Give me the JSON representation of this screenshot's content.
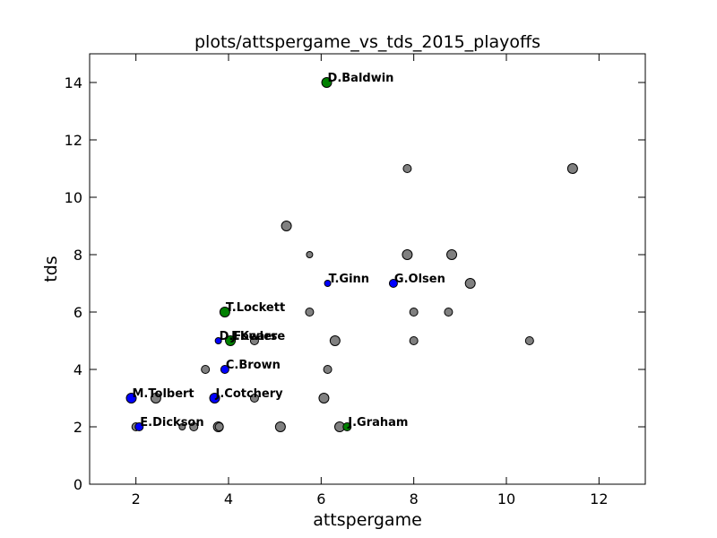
{
  "chart_data": {
    "type": "scatter",
    "title": "plots/attspergame_vs_tds_2015_playoffs",
    "xlabel": "attspergame",
    "ylabel": "tds",
    "xlim": [
      1,
      13
    ],
    "ylim": [
      0,
      15
    ],
    "xticks": [
      2,
      4,
      6,
      8,
      10,
      12
    ],
    "yticks": [
      0,
      2,
      4,
      6,
      8,
      10,
      12,
      14
    ],
    "grid": false,
    "colors": {
      "gray": "#808080",
      "blue": "#0000ff",
      "green": "#008000"
    },
    "points": [
      {
        "x": 11.43,
        "y": 11,
        "size": "medium",
        "color": "gray",
        "label": ""
      },
      {
        "x": 7.86,
        "y": 11,
        "size": "small",
        "color": "gray",
        "label": ""
      },
      {
        "x": 5.25,
        "y": 9,
        "size": "medium",
        "color": "gray",
        "label": ""
      },
      {
        "x": 5.75,
        "y": 8,
        "size": "tiny",
        "color": "gray",
        "label": ""
      },
      {
        "x": 7.86,
        "y": 8,
        "size": "medium",
        "color": "gray",
        "label": ""
      },
      {
        "x": 8.82,
        "y": 8,
        "size": "medium",
        "color": "gray",
        "label": ""
      },
      {
        "x": 9.22,
        "y": 7,
        "size": "medium",
        "color": "gray",
        "label": ""
      },
      {
        "x": 5.75,
        "y": 6,
        "size": "small",
        "color": "gray",
        "label": ""
      },
      {
        "x": 8.0,
        "y": 6,
        "size": "small",
        "color": "gray",
        "label": ""
      },
      {
        "x": 8.75,
        "y": 6,
        "size": "small",
        "color": "gray",
        "label": ""
      },
      {
        "x": 4.56,
        "y": 5,
        "size": "small",
        "color": "gray",
        "label": ""
      },
      {
        "x": 6.3,
        "y": 5,
        "size": "medium",
        "color": "gray",
        "label": ""
      },
      {
        "x": 8.0,
        "y": 5,
        "size": "small",
        "color": "gray",
        "label": ""
      },
      {
        "x": 10.5,
        "y": 5,
        "size": "small",
        "color": "gray",
        "label": ""
      },
      {
        "x": 3.5,
        "y": 4,
        "size": "small",
        "color": "gray",
        "label": ""
      },
      {
        "x": 6.14,
        "y": 4,
        "size": "small",
        "color": "gray",
        "label": ""
      },
      {
        "x": 2.43,
        "y": 3,
        "size": "medium",
        "color": "gray",
        "label": ""
      },
      {
        "x": 4.56,
        "y": 3,
        "size": "small",
        "color": "gray",
        "label": ""
      },
      {
        "x": 6.06,
        "y": 3,
        "size": "medium",
        "color": "gray",
        "label": ""
      },
      {
        "x": 2.0,
        "y": 2,
        "size": "small",
        "color": "gray",
        "label": ""
      },
      {
        "x": 3.0,
        "y": 2,
        "size": "tiny",
        "color": "gray",
        "label": ""
      },
      {
        "x": 3.25,
        "y": 2,
        "size": "small",
        "color": "gray",
        "label": ""
      },
      {
        "x": 3.78,
        "y": 2,
        "size": "medium",
        "color": "gray",
        "label": ""
      },
      {
        "x": 3.8,
        "y": 2,
        "size": "small",
        "color": "gray",
        "label": ""
      },
      {
        "x": 5.12,
        "y": 2,
        "size": "medium",
        "color": "gray",
        "label": ""
      },
      {
        "x": 6.4,
        "y": 2,
        "size": "medium",
        "color": "gray",
        "label": ""
      },
      {
        "x": 6.12,
        "y": 14,
        "size": "medium",
        "color": "green",
        "label": "D.Baldwin"
      },
      {
        "x": 6.14,
        "y": 7,
        "size": "tiny",
        "color": "blue",
        "label": "T.Ginn"
      },
      {
        "x": 7.56,
        "y": 7,
        "size": "small",
        "color": "blue",
        "label": "G.Olsen"
      },
      {
        "x": 3.92,
        "y": 6,
        "size": "medium",
        "color": "green",
        "label": "T.Lockett"
      },
      {
        "x": 3.78,
        "y": 5,
        "size": "tiny",
        "color": "blue",
        "label": "D.Fowler"
      },
      {
        "x": 4.04,
        "y": 5,
        "size": "medium",
        "color": "green",
        "label": "J.Kearse"
      },
      {
        "x": 3.92,
        "y": 4,
        "size": "small",
        "color": "blue",
        "label": "C.Brown"
      },
      {
        "x": 1.9,
        "y": 3,
        "size": "medium",
        "color": "blue",
        "label": "M.Tolbert"
      },
      {
        "x": 3.7,
        "y": 3,
        "size": "medium",
        "color": "blue",
        "label": "J.Cotchery"
      },
      {
        "x": 2.07,
        "y": 2,
        "size": "small",
        "color": "blue",
        "label": "E.Dickson"
      },
      {
        "x": 6.56,
        "y": 2,
        "size": "small",
        "color": "green",
        "label": "J.Graham"
      }
    ]
  }
}
